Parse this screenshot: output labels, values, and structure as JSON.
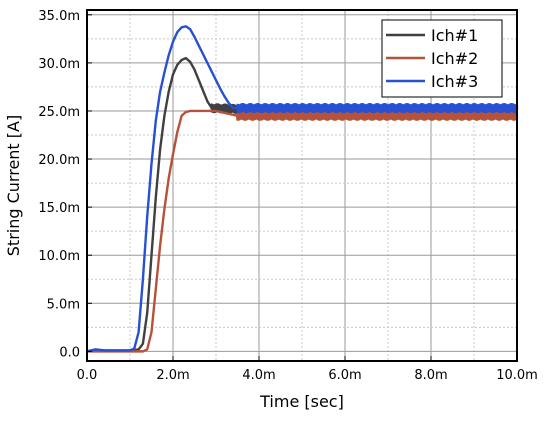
{
  "chart_data": {
    "type": "line",
    "xlabel": "Time [sec]",
    "ylabel": "String Current [A]",
    "xlim": [
      0,
      0.01
    ],
    "ylim": [
      -0.001,
      0.0355
    ],
    "x_ticks": [
      0,
      0.002,
      0.004,
      0.006,
      0.008,
      0.01
    ],
    "x_tick_labels": [
      "0.0",
      "2.0m",
      "4.0m",
      "6.0m",
      "8.0m",
      "10.0m"
    ],
    "y_ticks": [
      0,
      0.005,
      0.01,
      0.015,
      0.02,
      0.025,
      0.03,
      0.035
    ],
    "y_tick_labels": [
      "0.0",
      "5.0m",
      "10.0m",
      "15.0m",
      "20.0m",
      "25.0m",
      "30.0m",
      "35.0m"
    ],
    "grid": true,
    "legend_position": "top-right",
    "series": [
      {
        "name": "Ich#1",
        "color": "#404040",
        "noise_after": 0.0029,
        "noise_amp": 0.0004,
        "x": [
          0,
          0.0002,
          0.0004,
          0.0006,
          0.0008,
          0.001,
          0.0012,
          0.0013,
          0.0014,
          0.0015,
          0.0016,
          0.0017,
          0.0018,
          0.0019,
          0.002,
          0.0021,
          0.0022,
          0.0023,
          0.0024,
          0.0025,
          0.0026,
          0.0027,
          0.0028,
          0.0029,
          0.0035,
          0.004,
          0.005,
          0.006,
          0.007,
          0.008,
          0.009,
          0.01
        ],
        "y": [
          0,
          0.0002,
          0.0001,
          0.0001,
          0.0001,
          0.0001,
          0.0002,
          0.0008,
          0.004,
          0.01,
          0.016,
          0.021,
          0.0245,
          0.027,
          0.0288,
          0.0298,
          0.0303,
          0.0305,
          0.0301,
          0.0293,
          0.0282,
          0.0271,
          0.026,
          0.0253,
          0.0252,
          0.025,
          0.025,
          0.025,
          0.025,
          0.025,
          0.025,
          0.025
        ]
      },
      {
        "name": "Ich#2",
        "color": "#b5523a",
        "noise_after": 0.0035,
        "noise_amp": 0.0004,
        "x": [
          0,
          0.0002,
          0.0004,
          0.0006,
          0.0008,
          0.001,
          0.0012,
          0.0013,
          0.0014,
          0.0015,
          0.0016,
          0.0017,
          0.0018,
          0.0019,
          0.002,
          0.0021,
          0.0022,
          0.0023,
          0.0024,
          0.0027,
          0.003,
          0.0035,
          0.004,
          0.005,
          0.006,
          0.007,
          0.008,
          0.009,
          0.01
        ],
        "y": [
          0,
          0,
          0,
          0,
          0,
          0,
          0,
          0,
          0.0002,
          0.002,
          0.0065,
          0.011,
          0.0148,
          0.018,
          0.0205,
          0.0228,
          0.0245,
          0.0249,
          0.025,
          0.025,
          0.025,
          0.0245,
          0.0245,
          0.0245,
          0.0245,
          0.0245,
          0.0245,
          0.0245,
          0.0245
        ]
      },
      {
        "name": "Ich#3",
        "color": "#2850d2",
        "noise_after": 0.0035,
        "noise_amp": 0.0004,
        "x": [
          0,
          0.0002,
          0.0004,
          0.0006,
          0.0008,
          0.001,
          0.0011,
          0.0012,
          0.0013,
          0.0014,
          0.0015,
          0.0016,
          0.0017,
          0.0018,
          0.0019,
          0.002,
          0.0021,
          0.0022,
          0.0023,
          0.0024,
          0.0025,
          0.0026,
          0.0027,
          0.0028,
          0.0029,
          0.003,
          0.0031,
          0.0032,
          0.0033,
          0.0034,
          0.0035,
          0.004,
          0.005,
          0.006,
          0.007,
          0.008,
          0.009,
          0.01
        ],
        "y": [
          0,
          0.0002,
          0.0001,
          0.0001,
          0.0001,
          0.0001,
          0.0003,
          0.002,
          0.0075,
          0.014,
          0.0195,
          0.024,
          0.027,
          0.029,
          0.0308,
          0.0322,
          0.0332,
          0.0337,
          0.0338,
          0.0335,
          0.0327,
          0.0318,
          0.0309,
          0.03,
          0.0291,
          0.0282,
          0.0273,
          0.0265,
          0.0258,
          0.0253,
          0.0253,
          0.0253,
          0.0253,
          0.0253,
          0.0253,
          0.0253,
          0.0253,
          0.0253
        ]
      }
    ]
  }
}
